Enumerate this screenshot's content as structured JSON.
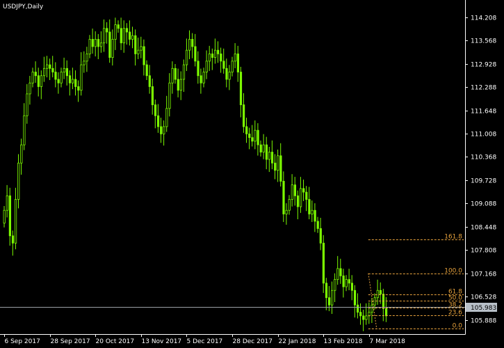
{
  "chart_data": {
    "type": "candlestick",
    "title": "USDJPY,Daily",
    "y_ticks": [
      "114.208",
      "113.568",
      "112.928",
      "112.288",
      "111.648",
      "111.008",
      "110.368",
      "109.728",
      "109.088",
      "108.448",
      "107.808",
      "107.168",
      "106.528",
      "105.888"
    ],
    "ylim": [
      105.5,
      114.68
    ],
    "x_ticks": [
      {
        "label": "6 Sep 2017",
        "index": 0
      },
      {
        "label": "28 Sep 2017",
        "index": 16
      },
      {
        "label": "20 Oct 2017",
        "index": 32
      },
      {
        "label": "13 Nov 2017",
        "index": 48
      },
      {
        "label": "5 Dec 2017",
        "index": 64
      },
      {
        "label": "28 Dec 2017",
        "index": 80
      },
      {
        "label": "22 Jan 2018",
        "index": 96
      },
      {
        "label": "13 Feb 2018",
        "index": 112
      },
      {
        "label": "7 Mar 2018",
        "index": 128
      }
    ],
    "current_price": {
      "label": "105.983",
      "value": 105.983
    },
    "fibonacci": {
      "start_index": 128,
      "high": 107.17,
      "low": 105.65,
      "levels": [
        {
          "label": "161.8",
          "ratio": 1.618
        },
        {
          "label": "100.0",
          "ratio": 1.0
        },
        {
          "label": "61.8",
          "ratio": 0.618
        },
        {
          "label": "50.0",
          "ratio": 0.5
        },
        {
          "label": "38.2",
          "ratio": 0.382
        },
        {
          "label": "23.6",
          "ratio": 0.236
        },
        {
          "label": "0.0",
          "ratio": 0.0
        }
      ]
    },
    "closes": [
      108.9,
      109.3,
      108.2,
      108.0,
      109.2,
      110.2,
      110.7,
      111.5,
      112.1,
      112.4,
      112.7,
      112.6,
      112.3,
      112.6,
      112.8,
      112.9,
      112.8,
      112.7,
      112.5,
      112.4,
      112.7,
      112.8,
      112.6,
      112.4,
      112.5,
      112.3,
      112.2,
      112.9,
      113.0,
      113.2,
      113.6,
      113.4,
      113.6,
      113.4,
      113.5,
      113.9,
      113.8,
      113.1,
      113.6,
      114.0,
      113.9,
      113.5,
      113.9,
      113.8,
      113.6,
      113.7,
      113.2,
      113.3,
      113.4,
      112.9,
      112.6,
      112.3,
      111.8,
      111.5,
      111.2,
      111.0,
      111.2,
      111.7,
      112.4,
      112.8,
      112.5,
      112.2,
      112.5,
      112.9,
      113.3,
      113.6,
      113.4,
      113.0,
      112.6,
      112.4,
      112.7,
      113.0,
      113.2,
      113.1,
      113.3,
      113.2,
      113.0,
      112.8,
      112.5,
      112.7,
      113.0,
      113.2,
      112.7,
      111.8,
      111.2,
      111.0,
      110.9,
      110.8,
      111.1,
      110.7,
      110.5,
      110.7,
      110.3,
      110.5,
      110.2,
      110.0,
      110.4,
      109.7,
      108.8,
      108.9,
      109.2,
      109.6,
      109.3,
      109.0,
      109.5,
      109.4,
      109.2,
      108.8,
      108.9,
      108.6,
      108.4,
      108.0,
      106.9,
      106.5,
      106.3,
      106.7,
      107.0,
      107.3,
      107.1,
      106.8,
      107.0,
      106.9,
      106.7,
      106.3,
      106.1,
      106.0,
      105.9,
      106.0,
      106.1,
      106.3,
      106.5,
      106.7,
      106.6,
      106.2,
      106.0
    ]
  }
}
